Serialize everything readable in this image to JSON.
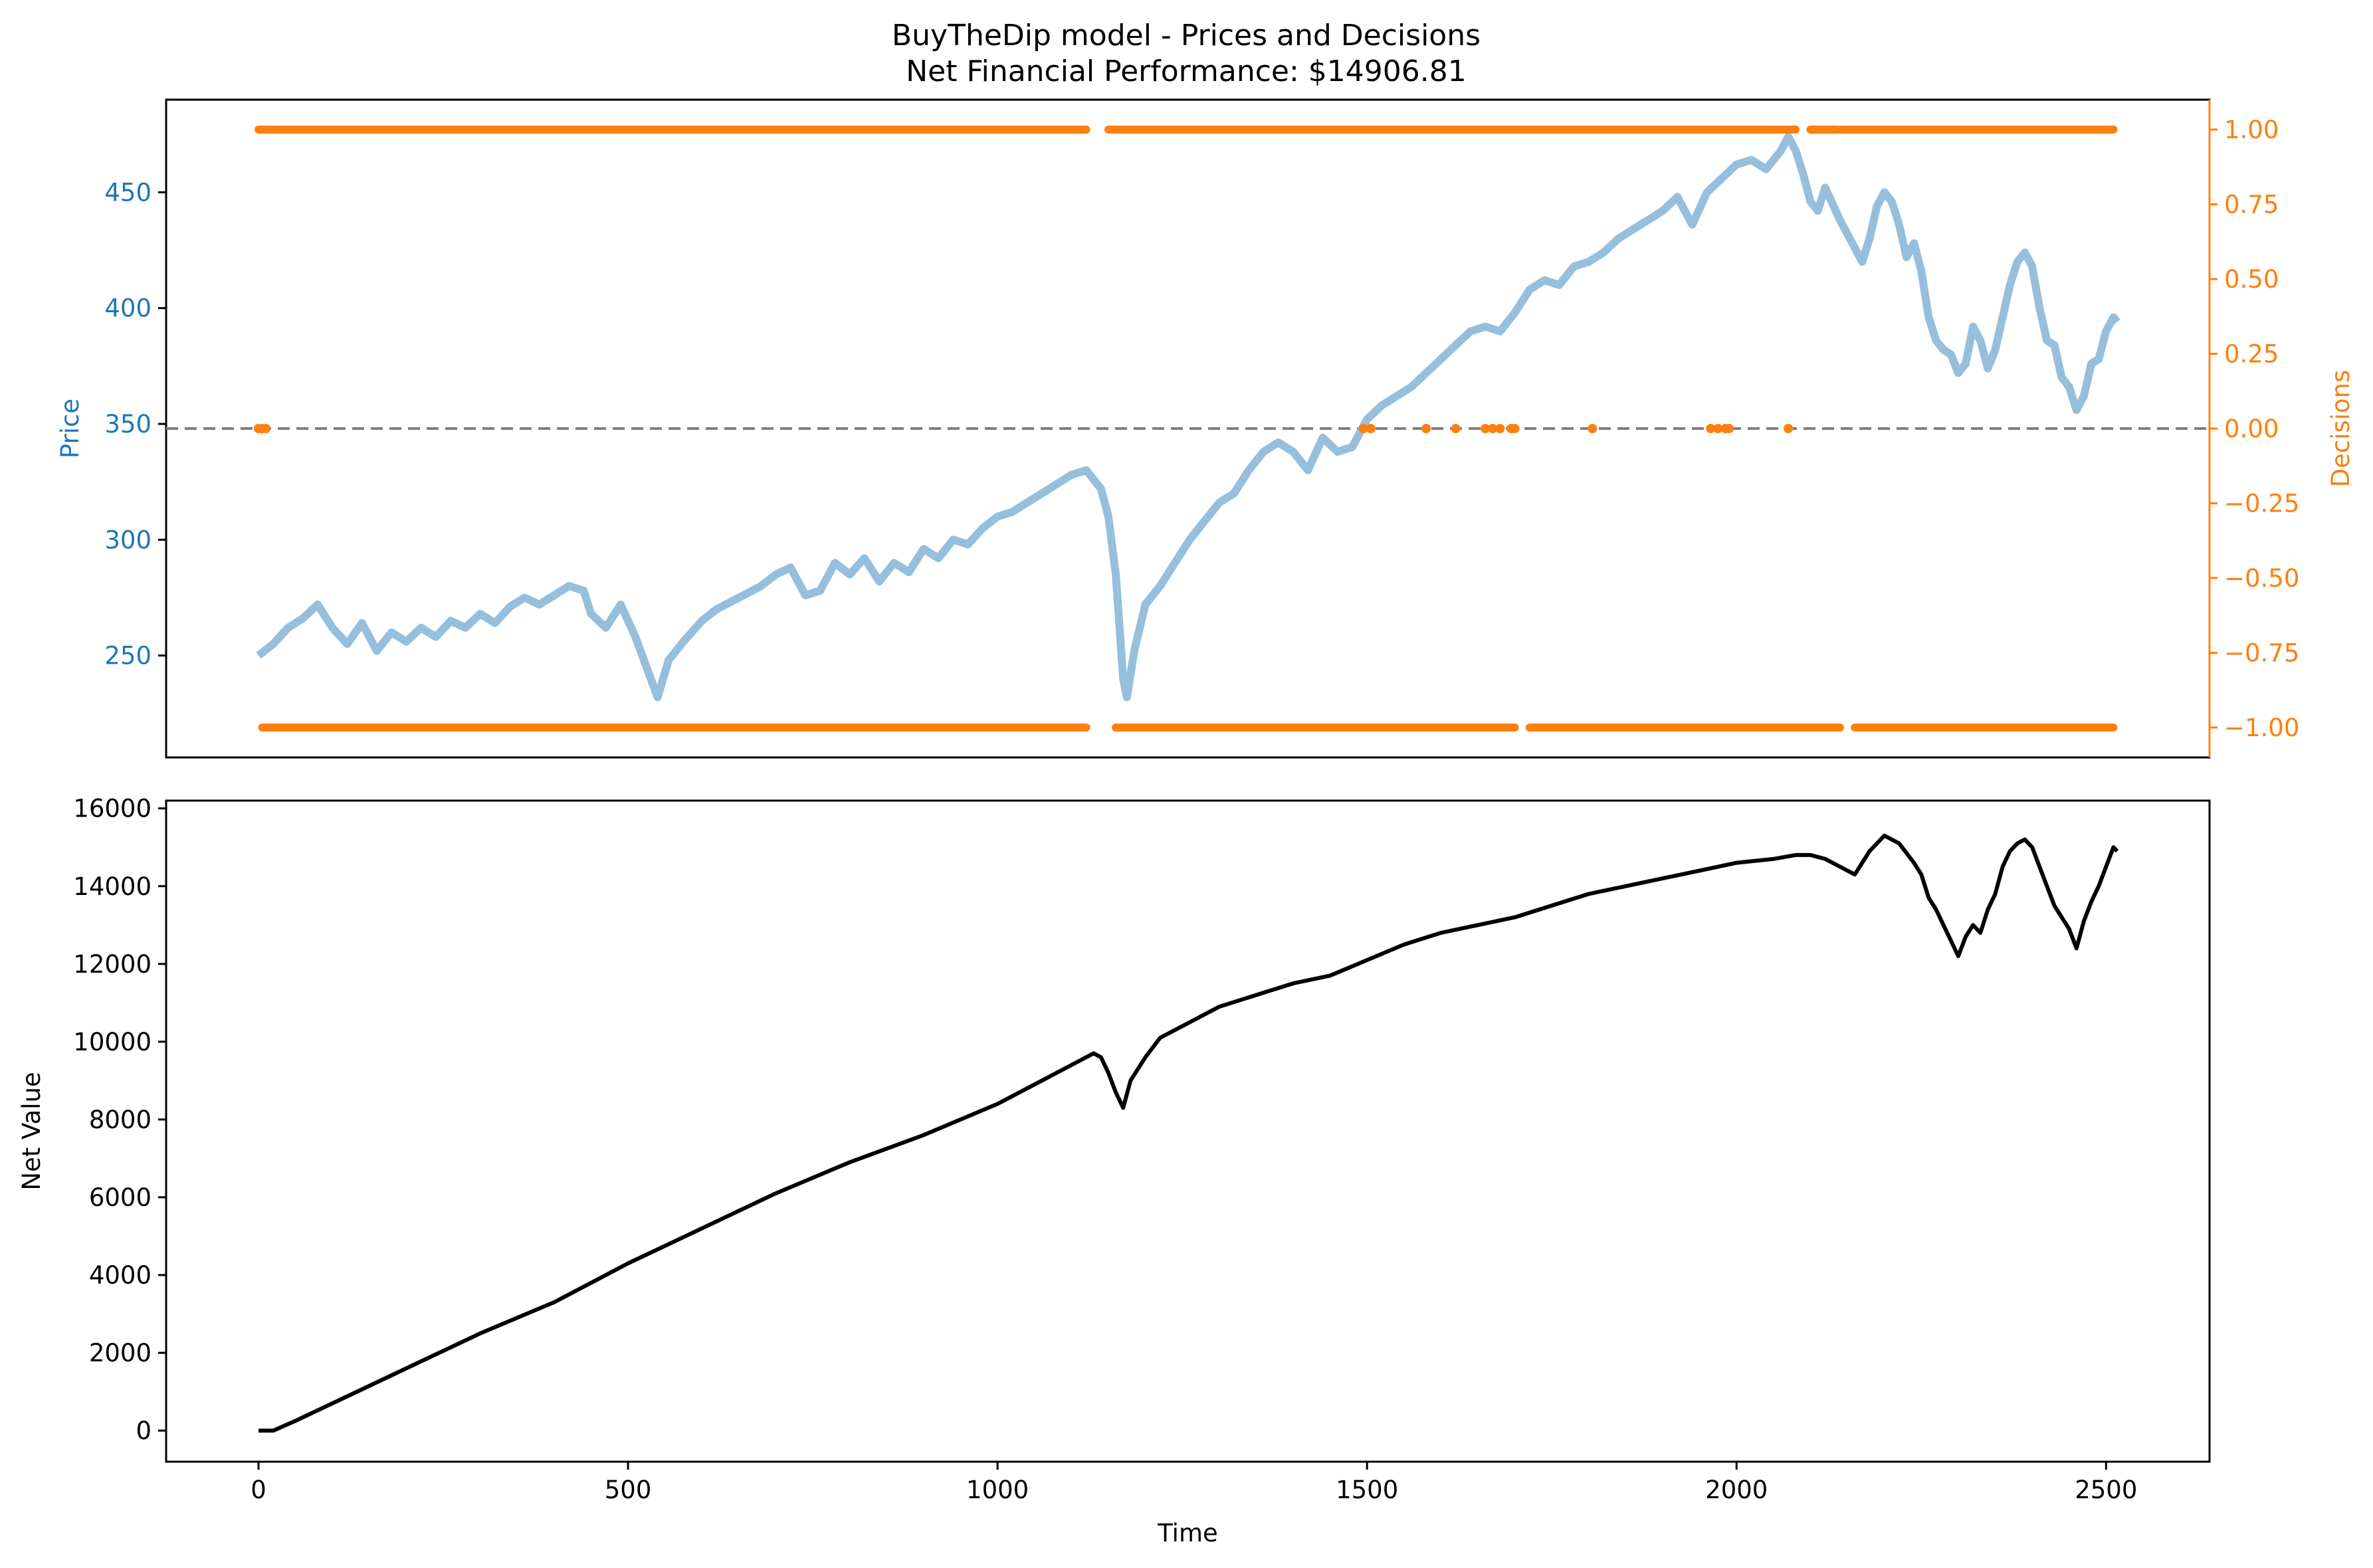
{
  "figure": {
    "title_line1": "BuyTheDip model - Prices and Decisions",
    "title_line2": "Net Financial Performance: $14906.81"
  },
  "colors": {
    "price": "#1f77b4",
    "price_line": "#8fbcdb",
    "decisions": "#ff7f0e",
    "zero_line": "#7f7f7f",
    "net_value": "#000000"
  },
  "chart_data": [
    {
      "type": "line",
      "panel": "top",
      "ylabel": "Price",
      "ylabel_right": "Decisions",
      "xlim": [
        -125,
        2640
      ],
      "ylim": [
        206,
        490
      ],
      "y_ticks": [
        250,
        300,
        350,
        400,
        450
      ],
      "y2lim": [
        -1.1,
        1.1
      ],
      "y2_ticks": [
        "1.00",
        "0.75",
        "0.50",
        "0.25",
        "0.00",
        "−0.25",
        "−0.50",
        "−0.75",
        "−1.00"
      ],
      "grid": false,
      "series": [
        {
          "kind": "line",
          "color_key": "price_line",
          "points": [
            [
              0,
              250
            ],
            [
              20,
              255
            ],
            [
              40,
              262
            ],
            [
              60,
              266
            ],
            [
              80,
              272
            ],
            [
              100,
              262
            ],
            [
              120,
              255
            ],
            [
              140,
              264
            ],
            [
              160,
              252
            ],
            [
              180,
              260
            ],
            [
              200,
              256
            ],
            [
              220,
              262
            ],
            [
              240,
              258
            ],
            [
              260,
              265
            ],
            [
              280,
              262
            ],
            [
              300,
              268
            ],
            [
              320,
              264
            ],
            [
              340,
              271
            ],
            [
              360,
              275
            ],
            [
              380,
              272
            ],
            [
              400,
              276
            ],
            [
              420,
              280
            ],
            [
              440,
              278
            ],
            [
              450,
              268
            ],
            [
              470,
              262
            ],
            [
              490,
              272
            ],
            [
              510,
              258
            ],
            [
              525,
              245
            ],
            [
              540,
              232
            ],
            [
              555,
              248
            ],
            [
              575,
              256
            ],
            [
              600,
              265
            ],
            [
              620,
              270
            ],
            [
              650,
              275
            ],
            [
              680,
              280
            ],
            [
              700,
              285
            ],
            [
              720,
              288
            ],
            [
              740,
              276
            ],
            [
              760,
              278
            ],
            [
              780,
              290
            ],
            [
              800,
              285
            ],
            [
              820,
              292
            ],
            [
              840,
              282
            ],
            [
              860,
              290
            ],
            [
              880,
              286
            ],
            [
              900,
              296
            ],
            [
              920,
              292
            ],
            [
              940,
              300
            ],
            [
              960,
              298
            ],
            [
              980,
              305
            ],
            [
              1000,
              310
            ],
            [
              1020,
              312
            ],
            [
              1040,
              316
            ],
            [
              1060,
              320
            ],
            [
              1080,
              324
            ],
            [
              1100,
              328
            ],
            [
              1120,
              330
            ],
            [
              1140,
              322
            ],
            [
              1150,
              310
            ],
            [
              1160,
              285
            ],
            [
              1170,
              240
            ],
            [
              1175,
              232
            ],
            [
              1185,
              252
            ],
            [
              1200,
              272
            ],
            [
              1220,
              280
            ],
            [
              1240,
              290
            ],
            [
              1260,
              300
            ],
            [
              1280,
              308
            ],
            [
              1300,
              316
            ],
            [
              1320,
              320
            ],
            [
              1340,
              330
            ],
            [
              1360,
              338
            ],
            [
              1380,
              342
            ],
            [
              1400,
              338
            ],
            [
              1420,
              330
            ],
            [
              1440,
              344
            ],
            [
              1460,
              338
            ],
            [
              1480,
              340
            ],
            [
              1500,
              352
            ],
            [
              1520,
              358
            ],
            [
              1540,
              362
            ],
            [
              1560,
              366
            ],
            [
              1580,
              372
            ],
            [
              1600,
              378
            ],
            [
              1620,
              384
            ],
            [
              1640,
              390
            ],
            [
              1660,
              392
            ],
            [
              1680,
              390
            ],
            [
              1700,
              398
            ],
            [
              1720,
              408
            ],
            [
              1740,
              412
            ],
            [
              1760,
              410
            ],
            [
              1780,
              418
            ],
            [
              1800,
              420
            ],
            [
              1820,
              424
            ],
            [
              1840,
              430
            ],
            [
              1860,
              434
            ],
            [
              1880,
              438
            ],
            [
              1900,
              442
            ],
            [
              1920,
              448
            ],
            [
              1940,
              436
            ],
            [
              1960,
              450
            ],
            [
              1980,
              456
            ],
            [
              2000,
              462
            ],
            [
              2020,
              464
            ],
            [
              2040,
              460
            ],
            [
              2060,
              468
            ],
            [
              2070,
              474
            ],
            [
              2080,
              468
            ],
            [
              2090,
              458
            ],
            [
              2100,
              446
            ],
            [
              2110,
              442
            ],
            [
              2120,
              452
            ],
            [
              2140,
              438
            ],
            [
              2160,
              426
            ],
            [
              2170,
              420
            ],
            [
              2180,
              430
            ],
            [
              2190,
              444
            ],
            [
              2200,
              450
            ],
            [
              2210,
              446
            ],
            [
              2220,
              436
            ],
            [
              2230,
              422
            ],
            [
              2240,
              428
            ],
            [
              2250,
              416
            ],
            [
              2260,
              396
            ],
            [
              2270,
              386
            ],
            [
              2280,
              382
            ],
            [
              2290,
              380
            ],
            [
              2300,
              372
            ],
            [
              2310,
              376
            ],
            [
              2320,
              392
            ],
            [
              2330,
              386
            ],
            [
              2340,
              374
            ],
            [
              2350,
              382
            ],
            [
              2360,
              396
            ],
            [
              2370,
              410
            ],
            [
              2380,
              420
            ],
            [
              2390,
              424
            ],
            [
              2400,
              418
            ],
            [
              2410,
              400
            ],
            [
              2420,
              386
            ],
            [
              2430,
              384
            ],
            [
              2440,
              370
            ],
            [
              2450,
              366
            ],
            [
              2460,
              356
            ],
            [
              2470,
              362
            ],
            [
              2480,
              376
            ],
            [
              2490,
              378
            ],
            [
              2500,
              390
            ],
            [
              2510,
              396
            ],
            [
              2515,
              394
            ]
          ]
        },
        {
          "kind": "scatter",
          "color_key": "decisions",
          "axis": "right",
          "name_value": "decisions_plus",
          "y": 1.0,
          "segments": [
            [
              0,
              1120
            ],
            [
              1150,
              2080
            ],
            [
              2100,
              2135
            ],
            [
              2140,
              2510
            ]
          ]
        },
        {
          "kind": "scatter",
          "color_key": "decisions",
          "axis": "right",
          "y": -1.0,
          "segments": [
            [
              5,
              1120
            ],
            [
              1160,
              1700
            ],
            [
              1720,
              2140
            ],
            [
              2160,
              2510
            ]
          ]
        },
        {
          "kind": "scatter",
          "color_key": "decisions",
          "axis": "right",
          "y": 0.0,
          "x_points": [
            0,
            5,
            10,
            1495,
            1505,
            1580,
            1620,
            1660,
            1670,
            1680,
            1695,
            1700,
            1805,
            1965,
            1975,
            1985,
            1990,
            2070
          ]
        },
        {
          "kind": "hline",
          "color_key": "zero_line",
          "axis": "right",
          "y": 0.0,
          "dashed": true
        }
      ]
    },
    {
      "type": "line",
      "panel": "bottom",
      "xlabel": "Time",
      "ylabel": "Net Value",
      "xlim": [
        -125,
        2640
      ],
      "x_ticks": [
        0,
        500,
        1000,
        1500,
        2000,
        2500
      ],
      "ylim": [
        -800,
        16200
      ],
      "y_ticks": [
        0,
        2000,
        4000,
        6000,
        8000,
        10000,
        12000,
        14000,
        16000
      ],
      "grid": false,
      "series": [
        {
          "kind": "line",
          "color_key": "net_value",
          "points": [
            [
              0,
              0
            ],
            [
              20,
              0
            ],
            [
              50,
              250
            ],
            [
              100,
              700
            ],
            [
              200,
              1600
            ],
            [
              300,
              2500
            ],
            [
              400,
              3300
            ],
            [
              450,
              3800
            ],
            [
              500,
              4300
            ],
            [
              600,
              5200
            ],
            [
              700,
              6100
            ],
            [
              800,
              6900
            ],
            [
              900,
              7600
            ],
            [
              1000,
              8400
            ],
            [
              1050,
              8900
            ],
            [
              1100,
              9400
            ],
            [
              1130,
              9700
            ],
            [
              1140,
              9600
            ],
            [
              1150,
              9200
            ],
            [
              1160,
              8700
            ],
            [
              1170,
              8300
            ],
            [
              1180,
              9000
            ],
            [
              1200,
              9600
            ],
            [
              1220,
              10100
            ],
            [
              1260,
              10500
            ],
            [
              1300,
              10900
            ],
            [
              1350,
              11200
            ],
            [
              1400,
              11500
            ],
            [
              1450,
              11700
            ],
            [
              1500,
              12100
            ],
            [
              1550,
              12500
            ],
            [
              1600,
              12800
            ],
            [
              1650,
              13000
            ],
            [
              1700,
              13200
            ],
            [
              1750,
              13500
            ],
            [
              1800,
              13800
            ],
            [
              1850,
              14000
            ],
            [
              1900,
              14200
            ],
            [
              1950,
              14400
            ],
            [
              2000,
              14600
            ],
            [
              2050,
              14700
            ],
            [
              2080,
              14800
            ],
            [
              2100,
              14800
            ],
            [
              2120,
              14700
            ],
            [
              2140,
              14500
            ],
            [
              2160,
              14300
            ],
            [
              2180,
              14900
            ],
            [
              2200,
              15300
            ],
            [
              2220,
              15100
            ],
            [
              2240,
              14600
            ],
            [
              2250,
              14300
            ],
            [
              2260,
              13700
            ],
            [
              2270,
              13400
            ],
            [
              2280,
              13000
            ],
            [
              2290,
              12600
            ],
            [
              2300,
              12200
            ],
            [
              2310,
              12700
            ],
            [
              2320,
              13000
            ],
            [
              2330,
              12800
            ],
            [
              2340,
              13400
            ],
            [
              2350,
              13800
            ],
            [
              2360,
              14500
            ],
            [
              2370,
              14900
            ],
            [
              2380,
              15100
            ],
            [
              2390,
              15200
            ],
            [
              2400,
              15000
            ],
            [
              2410,
              14500
            ],
            [
              2420,
              14000
            ],
            [
              2430,
              13500
            ],
            [
              2440,
              13200
            ],
            [
              2450,
              12900
            ],
            [
              2460,
              12400
            ],
            [
              2470,
              13100
            ],
            [
              2480,
              13600
            ],
            [
              2490,
              14000
            ],
            [
              2500,
              14500
            ],
            [
              2510,
              15000
            ],
            [
              2515,
              14900
            ]
          ]
        }
      ]
    }
  ]
}
